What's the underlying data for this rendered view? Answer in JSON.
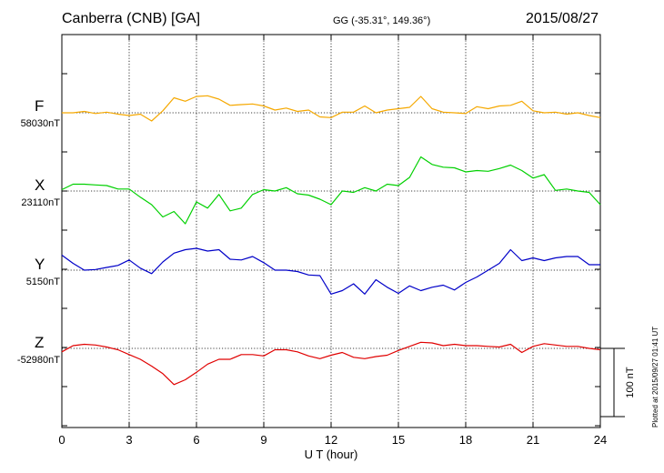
{
  "header": {
    "station": "Canberra (CNB)  [GA]",
    "coords": "GG (-35.31°, 149.36°)",
    "date": "2015/08/27"
  },
  "plotted_note": "Plotted at 2015/09/27 01:41 UT",
  "colors": {
    "F": "#f5a800",
    "X": "#00d000",
    "Y": "#0000c8",
    "Z": "#e00000",
    "frame": "#000000"
  },
  "chart_data": {
    "type": "line",
    "title": "Canberra (CNB)  [GA]",
    "xlabel": "U T (hour)",
    "xlim": [
      0,
      24
    ],
    "x_ticks": [
      0,
      3,
      6,
      9,
      12,
      15,
      18,
      21,
      24
    ],
    "scale_bar_label": "100 nT",
    "scale_bar_nT": 100,
    "grid": true,
    "x": [
      0,
      0.5,
      1,
      1.5,
      2,
      2.5,
      3,
      3.5,
      4,
      4.5,
      5,
      5.5,
      6,
      6.5,
      7,
      7.5,
      8,
      8.5,
      9,
      9.5,
      10,
      10.5,
      11,
      11.5,
      12,
      12.5,
      13,
      13.5,
      14,
      14.5,
      15,
      15.5,
      16,
      16.5,
      17,
      17.5,
      18,
      18.5,
      19,
      19.5,
      20,
      20.5,
      21,
      21.5,
      22,
      22.5,
      23,
      23.5,
      24
    ],
    "series": [
      {
        "name": "F",
        "baseline_label": "58030nT",
        "baseline": 58030,
        "values": [
          58030,
          58030,
          58032,
          58029,
          58031,
          58028,
          58026,
          58028,
          58018,
          58033,
          58052,
          58047,
          58054,
          58055,
          58050,
          58041,
          58042,
          58043,
          58040,
          58034,
          58037,
          58032,
          58034,
          58024,
          58023,
          58031,
          58031,
          58040,
          58030,
          58034,
          58036,
          58038,
          58054,
          58036,
          58031,
          58030,
          58029,
          58039,
          58036,
          58040,
          58041,
          58047,
          58033,
          58030,
          58031,
          58028,
          58030,
          58026,
          58023
        ]
      },
      {
        "name": "X",
        "baseline_label": "23110nT",
        "baseline": 23110,
        "values": [
          23112,
          23120,
          23120,
          23119,
          23118,
          23113,
          23113,
          23101,
          23090,
          23072,
          23080,
          23062,
          23094,
          23085,
          23105,
          23081,
          23085,
          23105,
          23112,
          23110,
          23115,
          23106,
          23104,
          23098,
          23090,
          23110,
          23108,
          23115,
          23110,
          23120,
          23118,
          23130,
          23160,
          23149,
          23145,
          23144,
          23138,
          23140,
          23139,
          23143,
          23148,
          23140,
          23129,
          23134,
          23111,
          23113,
          23110,
          23108,
          23090
        ]
      },
      {
        "name": "Y",
        "baseline_label": "5150nT",
        "baseline": 5150,
        "values": [
          5172,
          5160,
          5150,
          5151,
          5154,
          5157,
          5165,
          5153,
          5145,
          5162,
          5175,
          5180,
          5182,
          5178,
          5180,
          5166,
          5165,
          5170,
          5161,
          5150,
          5150,
          5148,
          5143,
          5142,
          5115,
          5120,
          5130,
          5115,
          5136,
          5125,
          5116,
          5127,
          5120,
          5125,
          5128,
          5121,
          5132,
          5140,
          5150,
          5160,
          5180,
          5164,
          5168,
          5164,
          5168,
          5170,
          5170,
          5158,
          5158
        ]
      },
      {
        "name": "Z",
        "baseline_label": "-52980nT",
        "baseline": -52980,
        "values": [
          -52985,
          -52976,
          -52974,
          -52975,
          -52978,
          -52982,
          -52989,
          -52996,
          -53006,
          -53017,
          -53033,
          -53026,
          -53015,
          -53003,
          -52996,
          -52996,
          -52989,
          -52989,
          -52991,
          -52982,
          -52982,
          -52985,
          -52991,
          -52995,
          -52990,
          -52986,
          -52993,
          -52995,
          -52992,
          -52990,
          -52983,
          -52977,
          -52971,
          -52972,
          -52976,
          -52974,
          -52976,
          -52976,
          -52977,
          -52978,
          -52974,
          -52986,
          -52977,
          -52973,
          -52975,
          -52977,
          -52977,
          -52980,
          -52982
        ]
      }
    ]
  }
}
